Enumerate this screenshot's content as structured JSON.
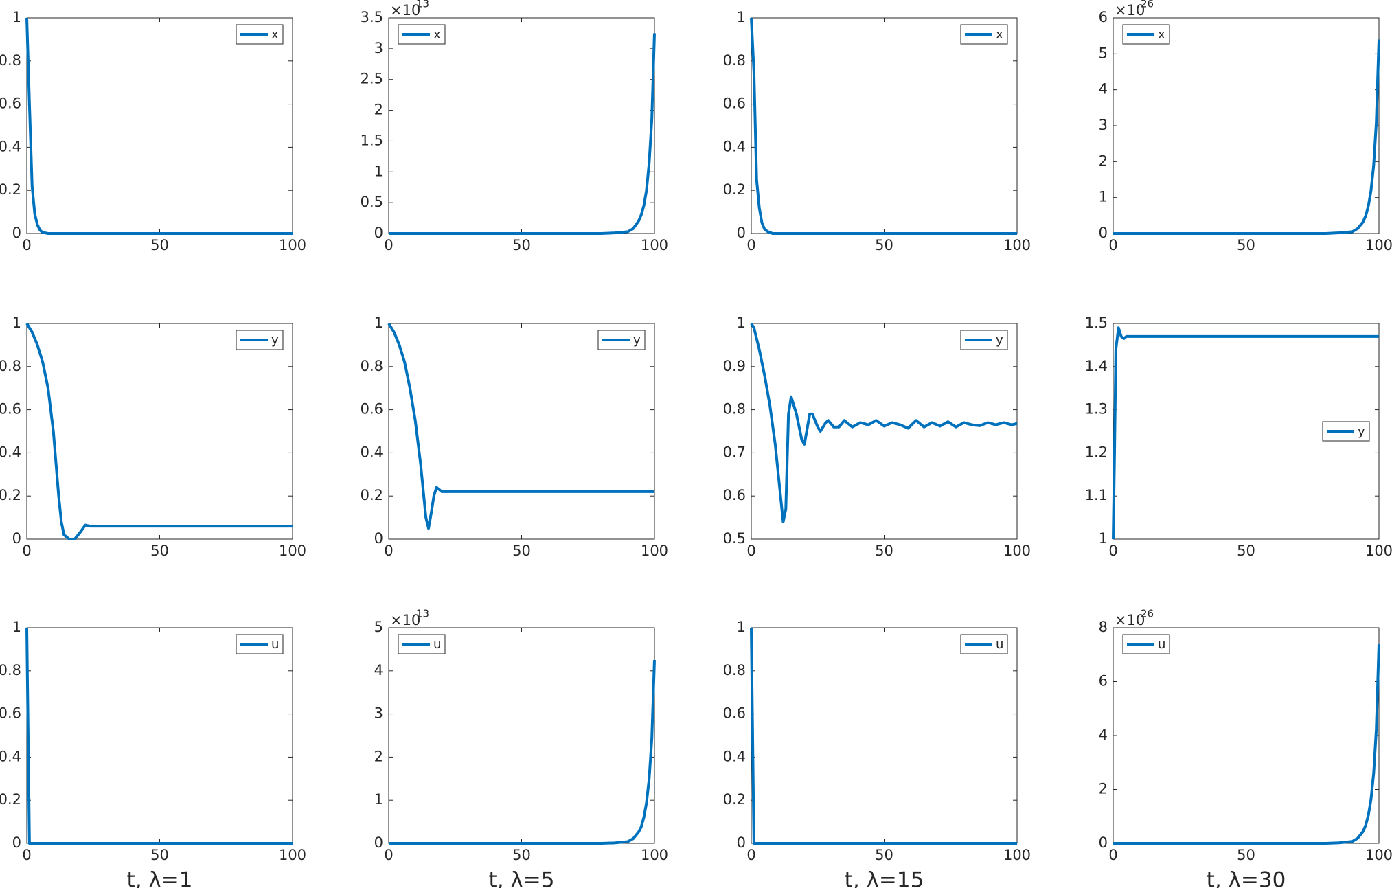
{
  "chart_data": [
    {
      "type": "line",
      "x": [
        0,
        1,
        2,
        3,
        4,
        5,
        6,
        8,
        10,
        20,
        30,
        40,
        50,
        60,
        70,
        80,
        90,
        100
      ],
      "series": [
        {
          "name": "x",
          "color": "#0072bd",
          "values": [
            1,
            0.6,
            0.22,
            0.09,
            0.04,
            0.015,
            0.005,
            0,
            0,
            0,
            0,
            0,
            0,
            0,
            0,
            0,
            0,
            0
          ]
        }
      ],
      "xlim": [
        0,
        100
      ],
      "xticks": [
        0,
        50,
        100
      ],
      "ylim": [
        0,
        1
      ],
      "yticks": [
        0,
        0.2,
        0.4,
        0.6,
        0.8,
        1
      ],
      "legend": "northeast"
    },
    {
      "type": "line",
      "x": [
        0,
        10,
        20,
        30,
        40,
        50,
        60,
        70,
        80,
        85,
        90,
        92,
        94,
        95,
        96,
        97,
        98,
        99,
        100
      ],
      "series": [
        {
          "name": "x",
          "color": "#0072bd",
          "values": [
            0,
            0,
            0,
            0,
            0,
            0,
            0,
            0,
            0,
            0.01,
            0.03,
            0.08,
            0.2,
            0.3,
            0.45,
            0.7,
            1.14,
            1.85,
            3.25
          ]
        }
      ],
      "xlim": [
        0,
        100
      ],
      "xticks": [
        0,
        50,
        100
      ],
      "ylim": [
        0,
        3.5
      ],
      "yticks": [
        0,
        0.5,
        1,
        1.5,
        2,
        2.5,
        3,
        3.5
      ],
      "y_multiplier": {
        "base": "×10",
        "exponent": "13"
      },
      "legend": "northwest"
    },
    {
      "type": "line",
      "x": [
        0,
        1,
        2,
        3,
        4,
        5,
        6,
        8,
        10,
        20,
        30,
        40,
        50,
        60,
        70,
        80,
        90,
        100
      ],
      "series": [
        {
          "name": "x",
          "color": "#0072bd",
          "values": [
            1,
            0.75,
            0.25,
            0.12,
            0.05,
            0.02,
            0.01,
            0,
            0,
            0,
            0,
            0,
            0,
            0,
            0,
            0,
            0,
            0
          ]
        }
      ],
      "xlim": [
        0,
        100
      ],
      "xticks": [
        0,
        50,
        100
      ],
      "ylim": [
        0,
        1
      ],
      "yticks": [
        0,
        0.2,
        0.4,
        0.6,
        0.8,
        1
      ],
      "legend": "northeast"
    },
    {
      "type": "line",
      "x": [
        0,
        10,
        20,
        30,
        40,
        50,
        60,
        70,
        80,
        85,
        90,
        92,
        94,
        95,
        96,
        97,
        98,
        99,
        100
      ],
      "series": [
        {
          "name": "x",
          "color": "#0072bd",
          "values": [
            0,
            0,
            0,
            0,
            0,
            0,
            0,
            0,
            0,
            0.02,
            0.05,
            0.14,
            0.32,
            0.49,
            0.76,
            1.19,
            1.89,
            3.08,
            5.4
          ]
        }
      ],
      "xlim": [
        0,
        100
      ],
      "xticks": [
        0,
        50,
        100
      ],
      "ylim": [
        0,
        6
      ],
      "yticks": [
        0,
        1,
        2,
        3,
        4,
        5,
        6
      ],
      "y_multiplier": {
        "base": "×10",
        "exponent": "26"
      },
      "legend": "northwest"
    },
    {
      "type": "line",
      "x": [
        0,
        2,
        4,
        6,
        8,
        10,
        12,
        13,
        14,
        16,
        18,
        20,
        22,
        24,
        30,
        40,
        50,
        60,
        70,
        80,
        90,
        100
      ],
      "series": [
        {
          "name": "y",
          "color": "#0072bd",
          "values": [
            1,
            0.96,
            0.9,
            0.82,
            0.7,
            0.5,
            0.2,
            0.08,
            0.02,
            0,
            0,
            0.03,
            0.065,
            0.06,
            0.06,
            0.06,
            0.06,
            0.06,
            0.06,
            0.06,
            0.06,
            0.06
          ]
        }
      ],
      "xlim": [
        0,
        100
      ],
      "xticks": [
        0,
        50,
        100
      ],
      "ylim": [
        0,
        1
      ],
      "yticks": [
        0,
        0.2,
        0.4,
        0.6,
        0.8,
        1
      ],
      "legend": "northeast"
    },
    {
      "type": "line",
      "x": [
        0,
        2,
        4,
        6,
        8,
        10,
        12,
        14,
        15,
        16,
        17,
        18,
        20,
        30,
        40,
        50,
        60,
        70,
        80,
        90,
        100
      ],
      "series": [
        {
          "name": "y",
          "color": "#0072bd",
          "values": [
            1,
            0.96,
            0.9,
            0.82,
            0.7,
            0.55,
            0.35,
            0.1,
            0.05,
            0.12,
            0.2,
            0.24,
            0.22,
            0.22,
            0.22,
            0.22,
            0.22,
            0.22,
            0.22,
            0.22,
            0.22
          ]
        }
      ],
      "xlim": [
        0,
        100
      ],
      "xticks": [
        0,
        50,
        100
      ],
      "ylim": [
        0,
        1
      ],
      "yticks": [
        0,
        0.2,
        0.4,
        0.6,
        0.8,
        1
      ],
      "legend": "northeast"
    },
    {
      "type": "line",
      "x": [
        0,
        1,
        3,
        5,
        7,
        9,
        11,
        12,
        13,
        14,
        15,
        17,
        19,
        20,
        22,
        23,
        25,
        26,
        28,
        29,
        31,
        33,
        35,
        38,
        41,
        44,
        47,
        50,
        53,
        56,
        59,
        62,
        65,
        68,
        71,
        74,
        77,
        80,
        83,
        86,
        89,
        92,
        95,
        98,
        100
      ],
      "series": [
        {
          "name": "y",
          "color": "#0072bd",
          "values": [
            1,
            0.99,
            0.94,
            0.88,
            0.81,
            0.72,
            0.6,
            0.54,
            0.57,
            0.79,
            0.83,
            0.79,
            0.73,
            0.72,
            0.79,
            0.79,
            0.76,
            0.75,
            0.77,
            0.775,
            0.76,
            0.76,
            0.775,
            0.76,
            0.77,
            0.765,
            0.775,
            0.762,
            0.77,
            0.765,
            0.757,
            0.775,
            0.76,
            0.77,
            0.762,
            0.772,
            0.76,
            0.77,
            0.765,
            0.763,
            0.77,
            0.765,
            0.77,
            0.765,
            0.768
          ]
        }
      ],
      "xlim": [
        0,
        100
      ],
      "xticks": [
        0,
        50,
        100
      ],
      "ylim": [
        0.5,
        1
      ],
      "yticks": [
        0.5,
        0.6,
        0.7,
        0.8,
        0.9,
        1
      ],
      "legend": "northeast"
    },
    {
      "type": "line",
      "x": [
        0,
        0.5,
        1,
        2,
        3,
        4,
        5,
        10,
        20,
        30,
        40,
        50,
        60,
        70,
        80,
        90,
        100
      ],
      "series": [
        {
          "name": "y",
          "color": "#0072bd",
          "values": [
            1,
            1.2,
            1.44,
            1.49,
            1.47,
            1.465,
            1.47,
            1.47,
            1.47,
            1.47,
            1.47,
            1.47,
            1.47,
            1.47,
            1.47,
            1.47,
            1.47
          ]
        }
      ],
      "xlim": [
        0,
        100
      ],
      "xticks": [
        0,
        50,
        100
      ],
      "ylim": [
        1,
        1.5
      ],
      "yticks": [
        1,
        1.1,
        1.2,
        1.3,
        1.4,
        1.5
      ],
      "legend": "east"
    },
    {
      "type": "line",
      "x": [
        0,
        1,
        10,
        20,
        30,
        40,
        50,
        60,
        70,
        80,
        90,
        100
      ],
      "series": [
        {
          "name": "u",
          "color": "#0072bd",
          "values": [
            1,
            0,
            0,
            0,
            0,
            0,
            0,
            0,
            0,
            0,
            0,
            0
          ]
        }
      ],
      "xlim": [
        0,
        100
      ],
      "xticks": [
        0,
        50,
        100
      ],
      "ylim": [
        0,
        1
      ],
      "yticks": [
        0,
        0.2,
        0.4,
        0.6,
        0.8,
        1
      ],
      "xlabel": "t, λ=1",
      "legend": "northeast"
    },
    {
      "type": "line",
      "x": [
        0,
        10,
        20,
        30,
        40,
        50,
        60,
        70,
        80,
        85,
        90,
        92,
        94,
        95,
        96,
        97,
        98,
        99,
        100
      ],
      "series": [
        {
          "name": "u",
          "color": "#0072bd",
          "values": [
            0,
            0,
            0,
            0,
            0,
            0,
            0,
            0,
            0,
            0.01,
            0.04,
            0.11,
            0.26,
            0.38,
            0.6,
            0.94,
            1.49,
            2.42,
            4.25
          ]
        }
      ],
      "xlim": [
        0,
        100
      ],
      "xticks": [
        0,
        50,
        100
      ],
      "ylim": [
        0,
        5
      ],
      "yticks": [
        0,
        1,
        2,
        3,
        4,
        5
      ],
      "y_multiplier": {
        "base": "×10",
        "exponent": "13"
      },
      "xlabel": "t, λ=5",
      "legend": "northwest"
    },
    {
      "type": "line",
      "x": [
        0,
        1,
        10,
        20,
        30,
        40,
        50,
        60,
        70,
        80,
        90,
        100
      ],
      "series": [
        {
          "name": "u",
          "color": "#0072bd",
          "values": [
            1,
            0,
            0,
            0,
            0,
            0,
            0,
            0,
            0,
            0,
            0,
            0
          ]
        }
      ],
      "xlim": [
        0,
        100
      ],
      "xticks": [
        0,
        50,
        100
      ],
      "ylim": [
        0,
        1
      ],
      "yticks": [
        0,
        0.2,
        0.4,
        0.6,
        0.8,
        1
      ],
      "xlabel": "t, λ=15",
      "legend": "northeast"
    },
    {
      "type": "line",
      "x": [
        0,
        10,
        20,
        30,
        40,
        50,
        60,
        70,
        80,
        85,
        90,
        92,
        94,
        95,
        96,
        97,
        98,
        99,
        100
      ],
      "series": [
        {
          "name": "u",
          "color": "#0072bd",
          "values": [
            0,
            0,
            0,
            0,
            0,
            0,
            0,
            0,
            0,
            0.02,
            0.07,
            0.19,
            0.44,
            0.67,
            1.04,
            1.63,
            2.59,
            4.22,
            7.4
          ]
        }
      ],
      "xlim": [
        0,
        100
      ],
      "xticks": [
        0,
        50,
        100
      ],
      "ylim": [
        0,
        8
      ],
      "yticks": [
        0,
        2,
        4,
        6,
        8
      ],
      "y_multiplier": {
        "base": "×10",
        "exponent": "26"
      },
      "xlabel": "t, λ=30",
      "legend": "northwest"
    }
  ]
}
